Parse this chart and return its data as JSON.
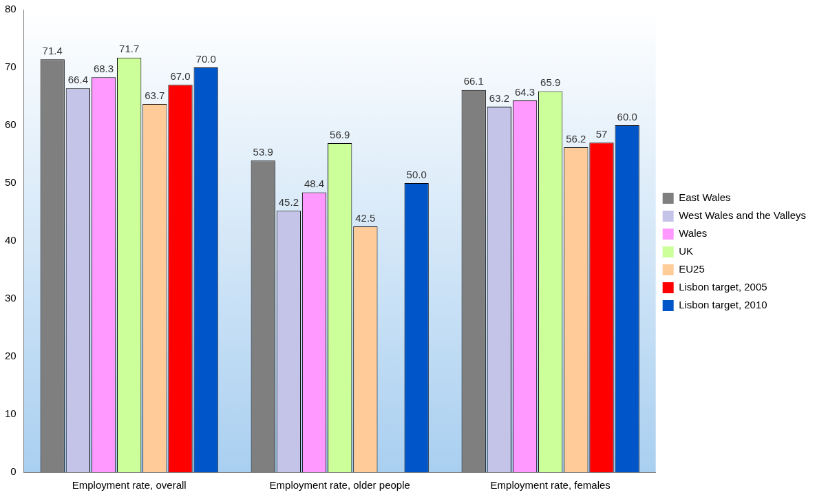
{
  "chart_data": {
    "type": "bar",
    "categories": [
      "Employment rate, overall",
      "Employment rate, older people",
      "Employment rate, females"
    ],
    "series": [
      {
        "name": "East Wales",
        "color": "#7f7f7f",
        "values": [
          71.4,
          53.9,
          66.1
        ],
        "value_labels": [
          "71.4",
          "53.9",
          "66.1"
        ]
      },
      {
        "name": "West Wales and the Valleys",
        "color": "#c4c4e8",
        "values": [
          66.4,
          45.2,
          63.2
        ],
        "value_labels": [
          "66.4",
          "45.2",
          "63.2"
        ]
      },
      {
        "name": "Wales",
        "color": "#ff99ff",
        "values": [
          68.3,
          48.4,
          64.3
        ],
        "value_labels": [
          "68.3",
          "48.4",
          "64.3"
        ]
      },
      {
        "name": "UK",
        "color": "#ccff99",
        "values": [
          71.7,
          56.9,
          65.9
        ],
        "value_labels": [
          "71.7",
          "56.9",
          "65.9"
        ]
      },
      {
        "name": "EU25",
        "color": "#ffcc99",
        "values": [
          63.7,
          42.5,
          56.2
        ],
        "value_labels": [
          "63.7",
          "42.5",
          "56.2"
        ]
      },
      {
        "name": "Lisbon target, 2005",
        "color": "#ff0000",
        "values": [
          67.0,
          null,
          57
        ],
        "value_labels": [
          "67.0",
          null,
          "57"
        ]
      },
      {
        "name": "Lisbon target, 2010",
        "color": "#0055c8",
        "values": [
          70.0,
          50.0,
          60.0
        ],
        "value_labels": [
          "70.0",
          "50.0",
          "60.0"
        ]
      }
    ],
    "ylim": [
      0,
      80
    ],
    "yticks": [
      0,
      10,
      20,
      30,
      40,
      50,
      60,
      70,
      80
    ],
    "grid": false,
    "legend": "right"
  }
}
